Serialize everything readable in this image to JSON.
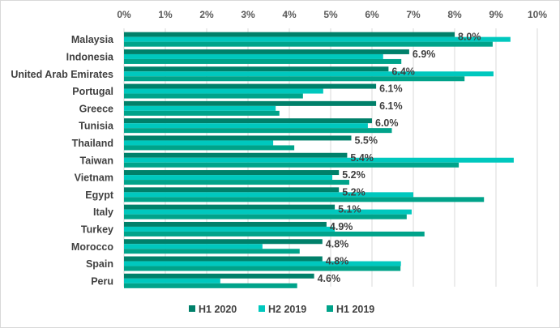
{
  "chart_data": {
    "type": "bar",
    "orientation": "horizontal",
    "title": "",
    "xlabel": "",
    "ylabel": "",
    "xlim": [
      0,
      10
    ],
    "x_tick_labels": [
      "0%",
      "1%",
      "2%",
      "3%",
      "4%",
      "5%",
      "6%",
      "7%",
      "8%",
      "9%",
      "10%"
    ],
    "x_axis_position": "top",
    "grid": true,
    "legend_position": "bottom",
    "categories": [
      "Malaysia",
      "Indonesia",
      "United Arab Emirates",
      "Portugal",
      "Greece",
      "Tunisia",
      "Thailand",
      "Taiwan",
      "Vietnam",
      "Egypt",
      "Italy",
      "Turkey",
      "Morocco",
      "Spain",
      "Peru"
    ],
    "series": [
      {
        "name": "H1 2020",
        "color": "#00806a",
        "values": [
          8.0,
          6.9,
          6.4,
          6.1,
          6.1,
          6.0,
          5.5,
          5.4,
          5.2,
          5.2,
          5.1,
          4.9,
          4.8,
          4.8,
          4.6
        ],
        "labeled": true
      },
      {
        "name": "H2 2019",
        "color": "#00c8be",
        "values": [
          9.35,
          6.27,
          8.94,
          4.82,
          3.67,
          5.9,
          3.61,
          9.43,
          5.04,
          7.0,
          6.96,
          5.1,
          3.35,
          6.7,
          2.33
        ],
        "labeled": false
      },
      {
        "name": "H1 2019",
        "color": "#00a38a",
        "values": [
          8.92,
          6.71,
          8.24,
          4.33,
          3.76,
          6.48,
          4.12,
          8.1,
          5.45,
          8.71,
          6.84,
          7.27,
          4.25,
          6.69,
          4.19
        ],
        "labeled": false
      }
    ],
    "data_labels": [
      "8.0%",
      "6.9%",
      "6.4%",
      "6.1%",
      "6.1%",
      "6.0%",
      "5.5%",
      "5.4%",
      "5.2%",
      "5.2%",
      "5.1%",
      "4.9%",
      "4.8%",
      "4.8%",
      "4.6%"
    ]
  }
}
